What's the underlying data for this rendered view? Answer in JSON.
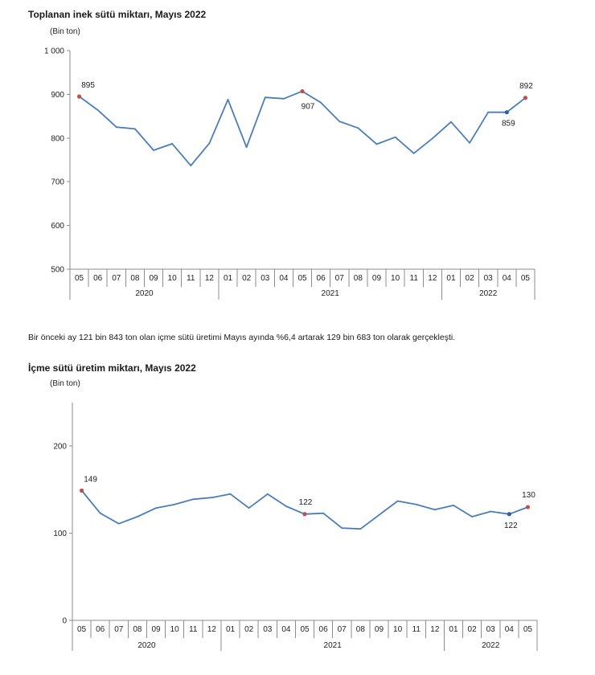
{
  "text": {
    "paragraph": "Bir önceki ay 121 bin 843 ton olan içme sütü üretimi Mayıs ayında %6,4 artarak 129 bin 683 ton olarak gerçekleşti."
  },
  "colors": {
    "line": "#4a7ebb",
    "marker_red": "#c0504d",
    "marker_blue": "#2f5fa3"
  },
  "chart_data": [
    {
      "type": "line",
      "title": "Toplanan inek sütü miktarı, Mayıs 2022",
      "ylabel": "(Bin ton)",
      "xlabel": "",
      "ylim": [
        500,
        1000
      ],
      "yticks": [
        500,
        600,
        700,
        800,
        900,
        1000
      ],
      "ytick_labels": [
        "500",
        "600",
        "700",
        "800",
        "900",
        "1 000"
      ],
      "grid": false,
      "categories": [
        "05",
        "06",
        "07",
        "08",
        "09",
        "10",
        "11",
        "12",
        "01",
        "02",
        "03",
        "04",
        "05",
        "06",
        "07",
        "08",
        "09",
        "10",
        "11",
        "12",
        "01",
        "02",
        "03",
        "04",
        "05"
      ],
      "groups": [
        {
          "label": "2020",
          "count": 8
        },
        {
          "label": "2021",
          "count": 12
        },
        {
          "label": "2022",
          "count": 5
        }
      ],
      "series": [
        {
          "values": [
            895,
            864,
            825,
            821,
            772,
            787,
            737,
            788,
            888,
            779,
            893,
            890,
            907,
            881,
            838,
            823,
            786,
            802,
            765,
            799,
            837,
            789,
            859,
            859,
            892
          ]
        }
      ],
      "markers": [
        {
          "index": 0,
          "color": "#c0504d"
        },
        {
          "index": 12,
          "color": "#c0504d"
        },
        {
          "index": 23,
          "color": "#2f5fa3"
        },
        {
          "index": 24,
          "color": "#c0504d"
        }
      ],
      "data_labels": [
        {
          "index": 0,
          "text": "895"
        },
        {
          "index": 12,
          "text": "907"
        },
        {
          "index": 23,
          "text": "859"
        },
        {
          "index": 24,
          "text": "892"
        }
      ]
    },
    {
      "type": "line",
      "title": "İçme sütü üretim miktarı, Mayıs 2022",
      "ylabel": "(Bin ton)",
      "xlabel": "",
      "ylim": [
        0,
        250
      ],
      "yticks": [
        0,
        100,
        200
      ],
      "ytick_labels": [
        "0",
        "100",
        "200"
      ],
      "grid": false,
      "categories": [
        "05",
        "06",
        "07",
        "08",
        "09",
        "10",
        "11",
        "12",
        "01",
        "02",
        "03",
        "04",
        "05",
        "06",
        "07",
        "08",
        "09",
        "10",
        "11",
        "12",
        "01",
        "02",
        "03",
        "04",
        "05"
      ],
      "groups": [
        {
          "label": "2020",
          "count": 8
        },
        {
          "label": "2021",
          "count": 12
        },
        {
          "label": "2022",
          "count": 5
        }
      ],
      "series": [
        {
          "values": [
            149,
            123,
            111,
            119,
            129,
            133,
            139,
            141,
            145,
            129,
            145,
            131,
            122,
            123,
            106,
            105,
            121,
            137,
            133,
            127,
            132,
            119,
            125,
            122,
            130
          ]
        }
      ],
      "markers": [
        {
          "index": 0,
          "color": "#c0504d"
        },
        {
          "index": 12,
          "color": "#c0504d"
        },
        {
          "index": 23,
          "color": "#2f5fa3"
        },
        {
          "index": 24,
          "color": "#c0504d"
        }
      ],
      "data_labels": [
        {
          "index": 0,
          "text": "149"
        },
        {
          "index": 12,
          "text": "122"
        },
        {
          "index": 23,
          "text": "122"
        },
        {
          "index": 24,
          "text": "130"
        }
      ]
    }
  ]
}
